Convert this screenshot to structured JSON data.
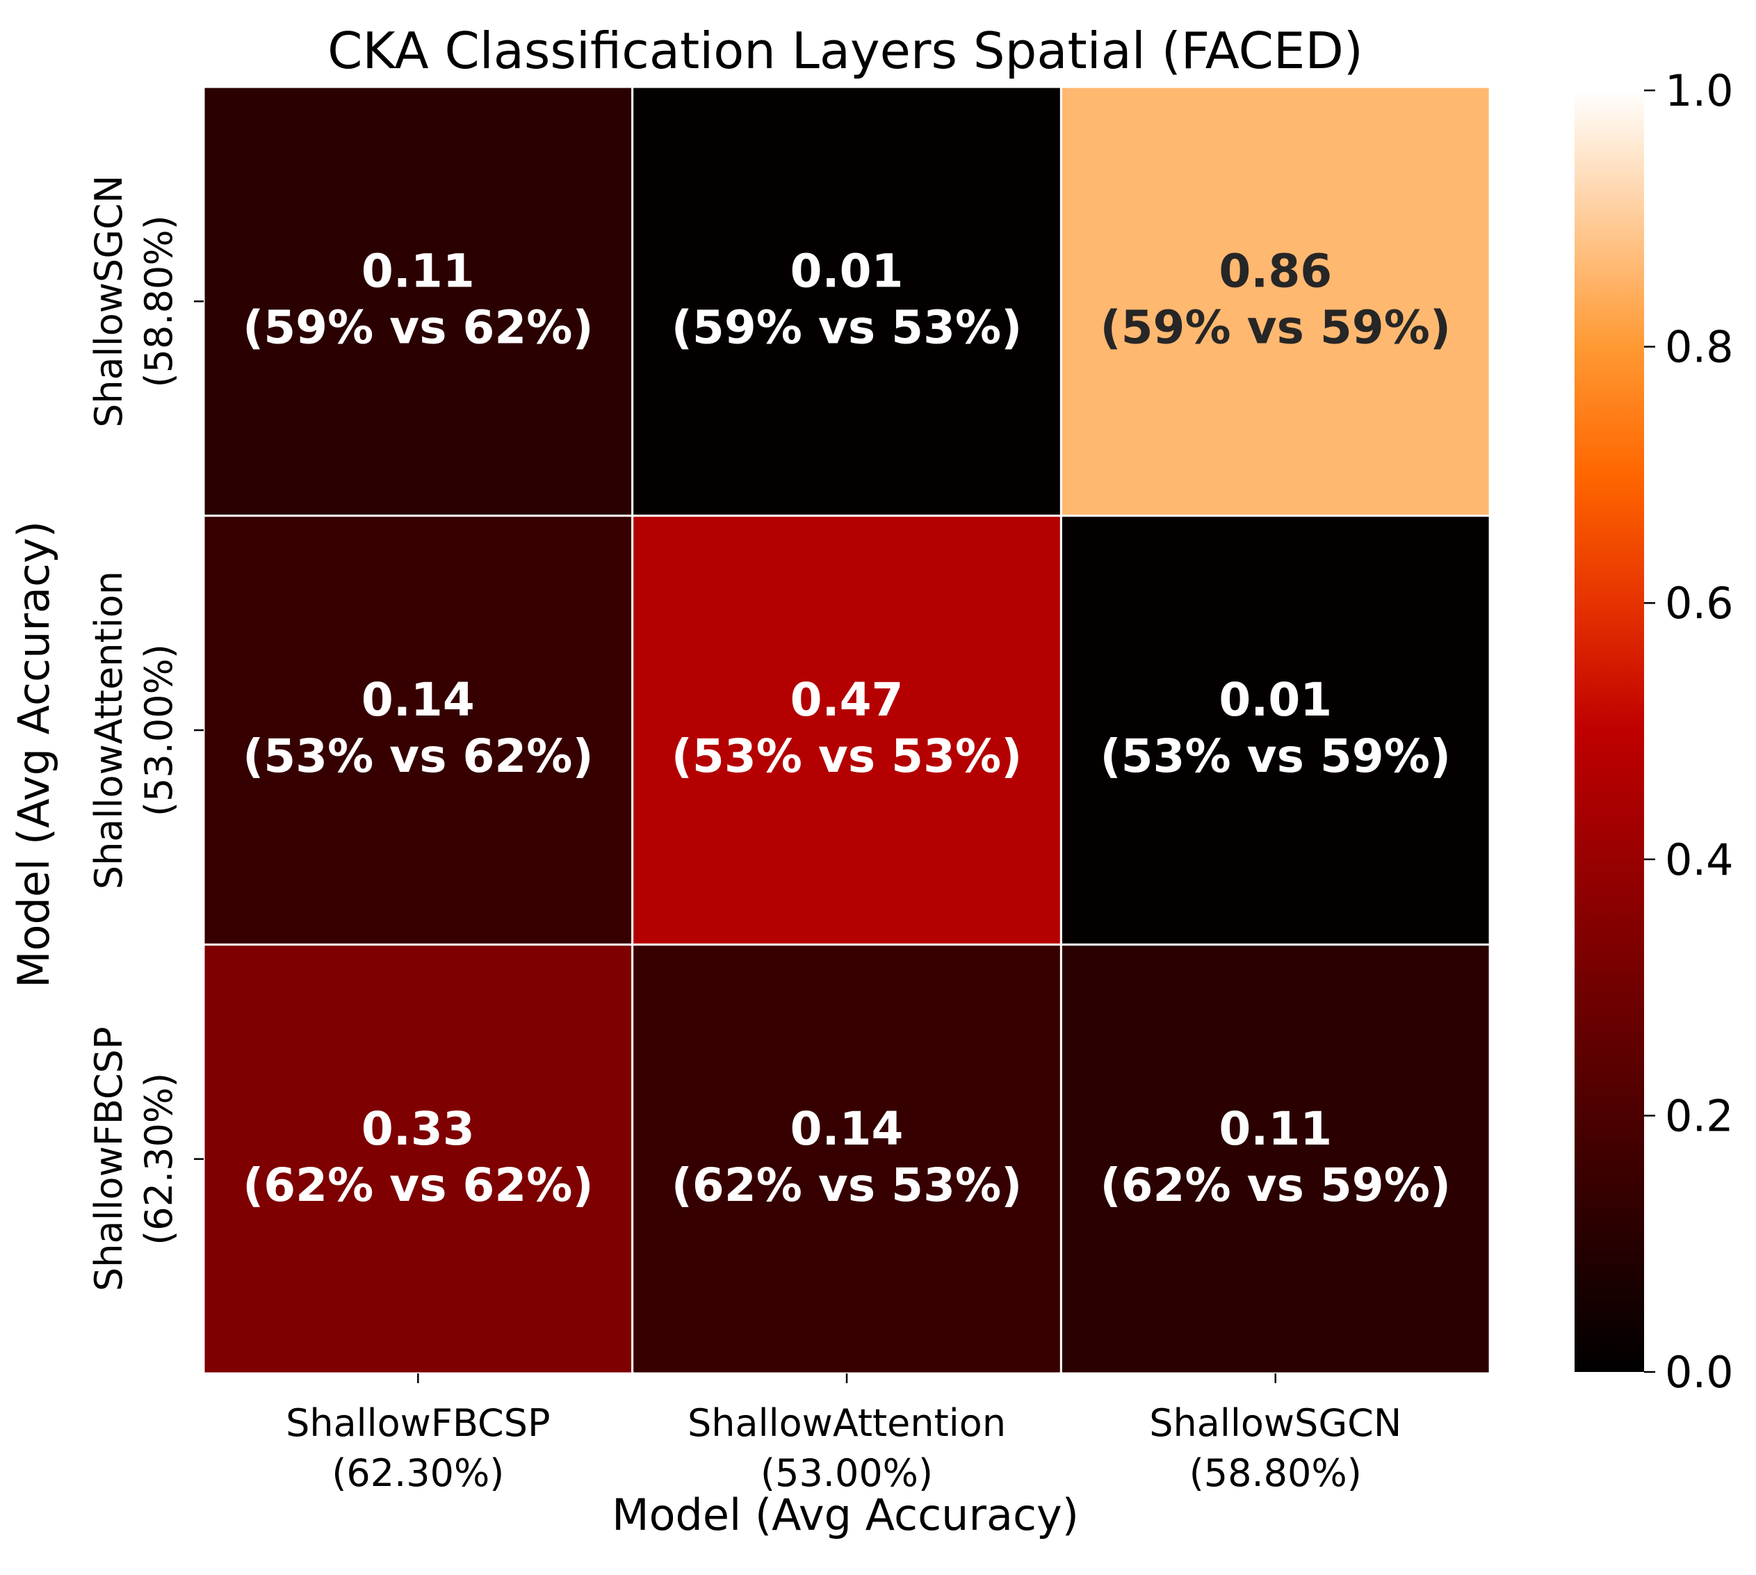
{
  "chart_data": {
    "type": "heatmap",
    "title": "CKA Classification Layers Spatial (FACED)",
    "xlabel": "Model (Avg Accuracy)",
    "ylabel": "Model (Avg Accuracy)",
    "x_categories": [
      {
        "name": "ShallowFBCSP",
        "accuracy": "(62.30%)"
      },
      {
        "name": "ShallowAttention",
        "accuracy": "(53.00%)"
      },
      {
        "name": "ShallowSGCN",
        "accuracy": "(58.80%)"
      }
    ],
    "y_categories": [
      {
        "name": "ShallowSGCN",
        "accuracy": "(58.80%)"
      },
      {
        "name": "ShallowAttention",
        "accuracy": "(53.00%)"
      },
      {
        "name": "ShallowFBCSP",
        "accuracy": "(62.30%)"
      }
    ],
    "values": [
      [
        0.11,
        0.01,
        0.86
      ],
      [
        0.14,
        0.47,
        0.01
      ],
      [
        0.33,
        0.14,
        0.11
      ]
    ],
    "cell_labels": [
      [
        [
          "0.11",
          "(59% vs 62%)"
        ],
        [
          "0.01",
          "(59% vs 53%)"
        ],
        [
          "0.86",
          "(59% vs 59%)"
        ]
      ],
      [
        [
          "0.14",
          "(53% vs 62%)"
        ],
        [
          "0.47",
          "(53% vs 53%)"
        ],
        [
          "0.01",
          "(53% vs 59%)"
        ]
      ],
      [
        [
          "0.33",
          "(62% vs 62%)"
        ],
        [
          "0.14",
          "(62% vs 53%)"
        ],
        [
          "0.11",
          "(62% vs 59%)"
        ]
      ]
    ],
    "colormap": "gist_heat",
    "vmin": 0.0,
    "vmax": 1.0,
    "colorbar_ticks": [
      "0.0",
      "0.2",
      "0.4",
      "0.6",
      "0.8",
      "1.0"
    ],
    "grid": true,
    "cell_border_color": "#ffffff",
    "text_color_light": "#ffffff",
    "text_color_dark": "#262626"
  }
}
